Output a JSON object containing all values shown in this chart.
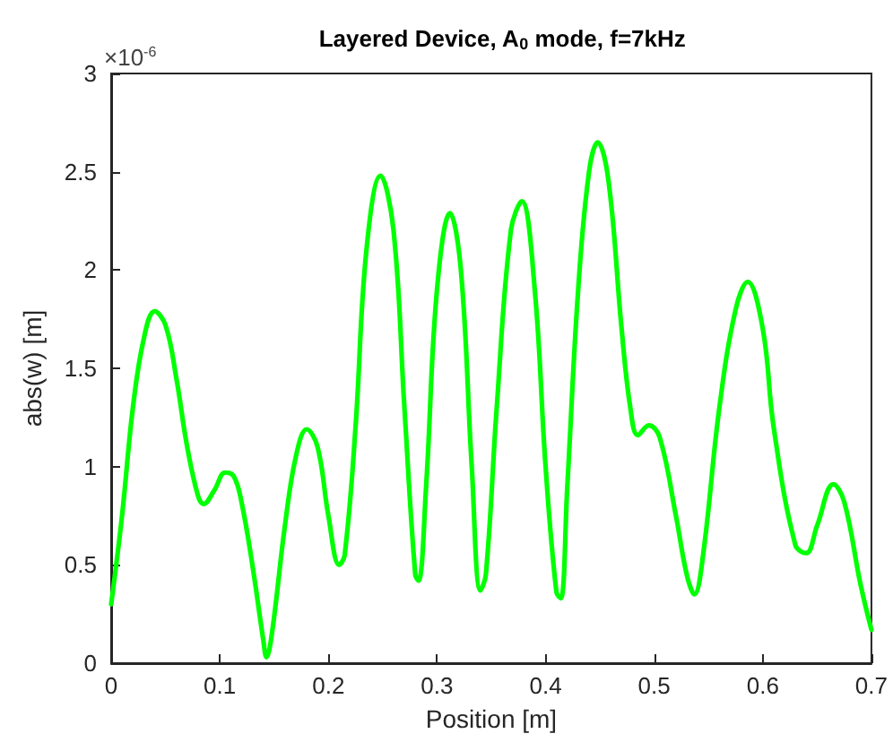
{
  "chart_data": {
    "type": "line",
    "title": "Layered Device, A$_{0}$ mode, f=7kHz",
    "xlabel": "Position [m]",
    "ylabel": "abs(w) [m]",
    "annotations": [
      "×10$^{-6}$"
    ],
    "x": [
      0,
      0.01,
      0.02,
      0.03,
      0.04,
      0.05,
      0.06,
      0.07,
      0.08,
      0.085,
      0.095,
      0.105,
      0.113,
      0.12,
      0.13,
      0.14,
      0.143,
      0.148,
      0.16,
      0.17,
      0.18,
      0.19,
      0.2,
      0.21,
      0.215,
      0.225,
      0.235,
      0.248,
      0.26,
      0.27,
      0.28,
      0.283,
      0.29,
      0.3,
      0.312,
      0.322,
      0.332,
      0.34,
      0.345,
      0.355,
      0.368,
      0.378,
      0.39,
      0.4,
      0.41,
      0.414,
      0.42,
      0.43,
      0.44,
      0.448,
      0.458,
      0.47,
      0.478,
      0.485,
      0.495,
      0.505,
      0.52,
      0.53,
      0.537,
      0.545,
      0.56,
      0.575,
      0.586,
      0.6,
      0.61,
      0.63,
      0.64,
      0.65,
      0.665,
      0.675,
      0.69,
      0.7
    ],
    "series": [
      {
        "color": "#00ff00",
        "values": [
          0.3,
          0.75,
          1.3,
          1.65,
          1.79,
          1.72,
          1.45,
          1.1,
          0.85,
          0.81,
          0.88,
          0.97,
          0.95,
          0.82,
          0.5,
          0.12,
          0.03,
          0.15,
          0.7,
          1.05,
          1.19,
          1.1,
          0.75,
          0.5,
          0.55,
          1.2,
          2.1,
          2.48,
          2.2,
          1.3,
          0.45,
          0.42,
          0.9,
          1.9,
          2.29,
          2.0,
          1.0,
          0.37,
          0.45,
          1.3,
          2.2,
          2.35,
          1.9,
          1.0,
          0.36,
          0.33,
          0.9,
          1.9,
          2.5,
          2.65,
          2.45,
          1.7,
          1.3,
          1.16,
          1.21,
          1.15,
          0.75,
          0.45,
          0.35,
          0.55,
          1.3,
          1.8,
          1.94,
          1.7,
          1.2,
          0.6,
          0.56,
          0.7,
          0.91,
          0.82,
          0.4,
          0.17
        ]
      }
    ],
    "xlim": [
      0,
      0.7
    ],
    "xticks": [
      0,
      0.1,
      0.2,
      0.3,
      0.4,
      0.5,
      0.6,
      0.7
    ],
    "ylim": [
      0,
      3
    ],
    "yticks": [
      0,
      0.5,
      1,
      1.5,
      2,
      2.5,
      3
    ],
    "grid": false,
    "marker": "none",
    "line_style": "solid"
  }
}
